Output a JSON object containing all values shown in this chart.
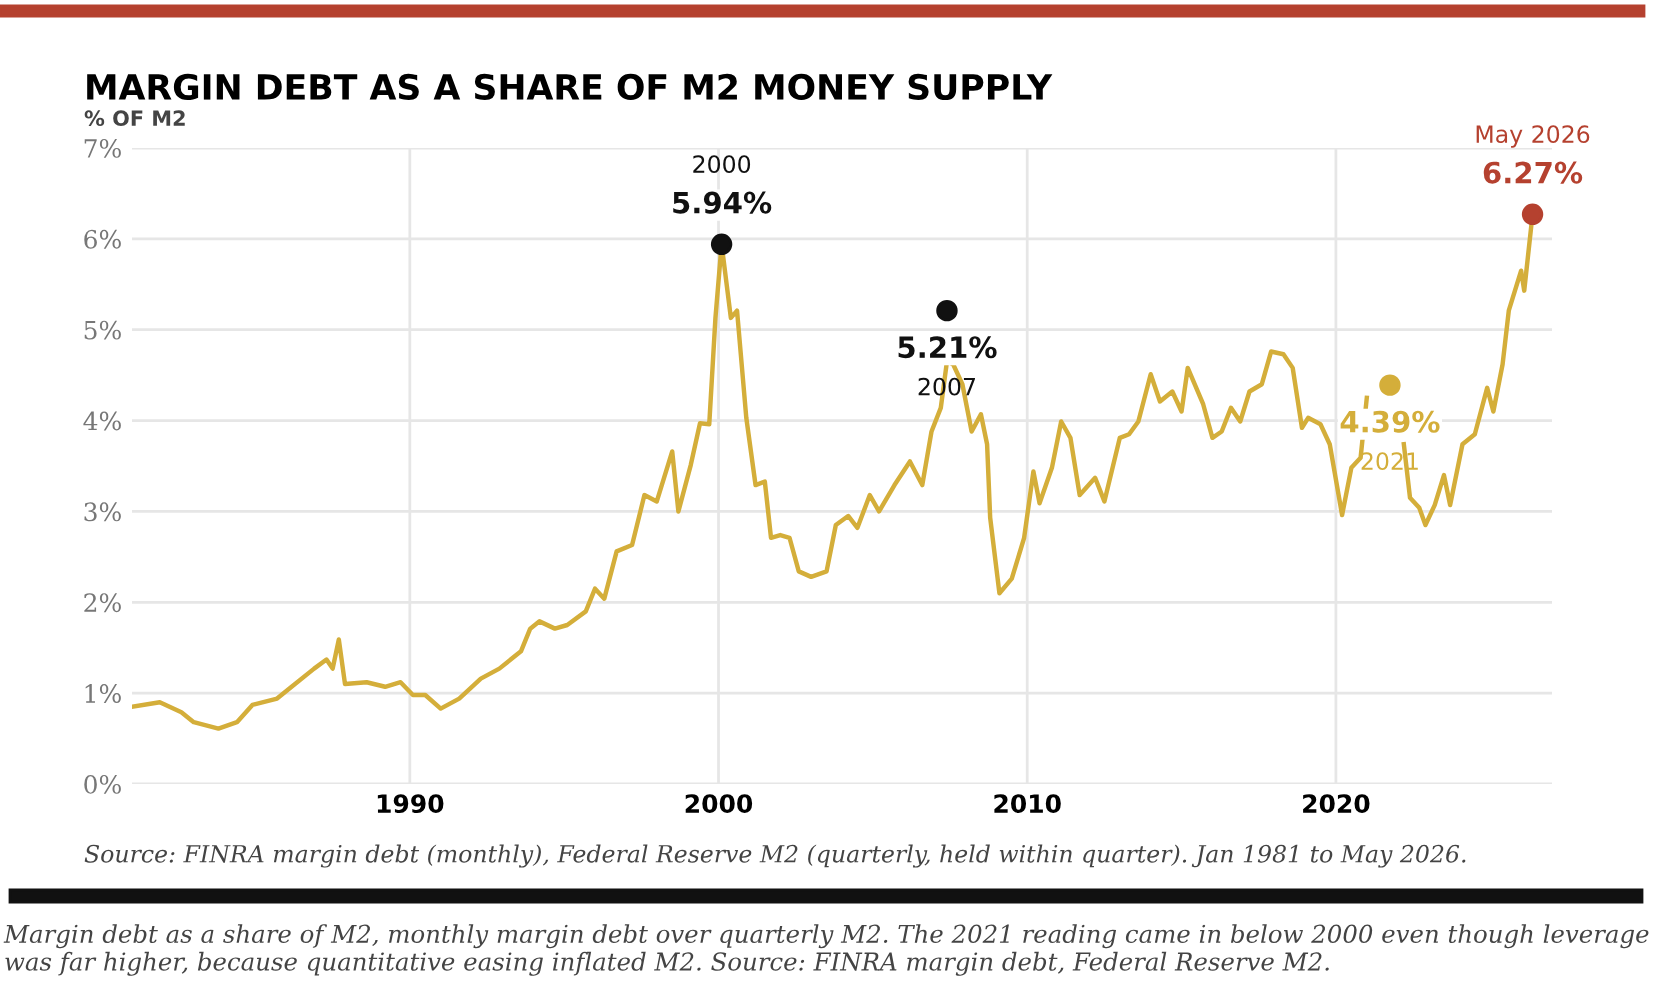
{
  "chart_data": {
    "type": "line",
    "title": "MARGIN DEBT AS A SHARE OF M2 MONEY SUPPLY",
    "ylabel": "% OF M2",
    "series": [
      {
        "color": "#d4ae3a",
        "x": [
          1981.0,
          1981.9,
          1982.6,
          1983.0,
          1983.8,
          1984.4,
          1984.9,
          1985.7,
          1986.1,
          1986.9,
          1987.3,
          1987.5,
          1987.7,
          1987.9,
          1988.6,
          1989.2,
          1989.7,
          1990.1,
          1990.5,
          1991.0,
          1991.6,
          1992.3,
          1992.9,
          1993.6,
          1993.9,
          1994.2,
          1994.7,
          1995.1,
          1995.7,
          1996.0,
          1996.3,
          1996.7,
          1997.2,
          1997.6,
          1998.0,
          1998.5,
          1998.7,
          1999.1,
          1999.4,
          1999.7,
          1999.9,
          2000.1,
          2000.4,
          2000.6,
          2000.9,
          2001.2,
          2001.5,
          2001.7,
          2002.0,
          2002.3,
          2002.6,
          2003.0,
          2003.5,
          2003.8,
          2004.2,
          2004.5,
          2004.9,
          2005.2,
          2005.7,
          2006.2,
          2006.6,
          2006.9,
          2007.2,
          2007.4,
          2007.6,
          2007.9,
          2008.2,
          2008.5,
          2008.7,
          2008.8,
          2009.1,
          2009.5,
          2009.9,
          2010.2,
          2010.4,
          2010.8,
          2011.1,
          2011.4,
          2011.7,
          2012.2,
          2012.5,
          2013.0,
          2013.3,
          2013.6,
          2014.0,
          2014.3,
          2014.7,
          2015.0,
          2015.2,
          2015.7,
          2016.0,
          2016.3,
          2016.6,
          2016.9,
          2017.2,
          2017.6,
          2017.9,
          2018.3,
          2018.6,
          2018.9,
          2019.1,
          2019.5,
          2019.8,
          2020.2,
          2020.5,
          2020.8,
          2021.0,
          2021.6,
          2022.2,
          2022.4,
          2022.7,
          2022.9,
          2023.2,
          2023.5,
          2023.7,
          2024.1,
          2024.5,
          2024.9,
          2025.1,
          2025.4,
          2025.6,
          2026.0,
          2026.1,
          2026.37
        ],
        "values": [
          0.85,
          0.9,
          0.79,
          0.68,
          0.61,
          0.68,
          0.87,
          0.94,
          1.05,
          1.27,
          1.37,
          1.27,
          1.59,
          1.1,
          1.12,
          1.07,
          1.12,
          0.98,
          0.98,
          0.83,
          0.94,
          1.16,
          1.27,
          1.46,
          1.71,
          1.79,
          1.71,
          1.75,
          1.9,
          2.15,
          2.04,
          2.56,
          2.63,
          3.18,
          3.11,
          3.66,
          3.0,
          3.51,
          3.97,
          3.96,
          5.13,
          5.94,
          5.13,
          5.21,
          4.03,
          3.29,
          3.33,
          2.71,
          2.74,
          2.71,
          2.34,
          2.28,
          2.34,
          2.85,
          2.95,
          2.82,
          3.18,
          3.0,
          3.29,
          3.55,
          3.29,
          3.88,
          4.14,
          4.65,
          4.62,
          4.4,
          3.88,
          4.07,
          3.74,
          2.93,
          2.1,
          2.26,
          2.71,
          3.44,
          3.09,
          3.48,
          3.99,
          3.81,
          3.18,
          3.37,
          3.11,
          3.81,
          3.85,
          3.99,
          4.51,
          4.21,
          4.32,
          4.1,
          4.58,
          4.18,
          3.81,
          3.88,
          4.14,
          3.99,
          4.32,
          4.4,
          4.76,
          4.73,
          4.58,
          3.92,
          4.03,
          3.96,
          3.74,
          2.96,
          3.48,
          3.59,
          4.25,
          null,
          3.74,
          3.15,
          3.04,
          2.85,
          3.07,
          3.4,
          3.07,
          3.74,
          3.85,
          4.36,
          4.1,
          4.62,
          5.21,
          5.65,
          5.43,
          6.27
        ]
      },
      {
        "type": "scatter",
        "marker": "circle",
        "x": [
          2000.1,
          2007.4,
          2021.75,
          2026.37
        ],
        "values": [
          5.94,
          5.21,
          4.39,
          6.27
        ],
        "colors": [
          "#111111",
          "#111111",
          "#d4ae3a",
          "#b5412f"
        ],
        "value_labels": [
          "5.94%",
          "5.21%",
          "4.39%",
          "6.27%"
        ]
      }
    ],
    "xlim": [
      1981,
      2027
    ],
    "xticks": [
      1990,
      2000,
      2010,
      2020
    ],
    "ylim": [
      0,
      7
    ],
    "yticks": [
      {
        "value": 0,
        "label": "0%"
      },
      {
        "value": 1,
        "label": "1%"
      },
      {
        "value": 2,
        "label": "2%"
      },
      {
        "value": 3,
        "label": "3%"
      },
      {
        "value": 4,
        "label": "4%"
      },
      {
        "value": 5,
        "label": "5%"
      },
      {
        "value": 6,
        "label": "6%"
      },
      {
        "value": 7,
        "label": "7%"
      }
    ],
    "grid": true,
    "line_style": "solid",
    "annotations": [
      "2000",
      "2007",
      "2021",
      "May 2026",
      "Source: FINRA margin debt (monthly), Federal Reserve M2 (quarterly, held within quarter). Jan 1981 to May 2026.",
      "Margin debt as a share of M2, monthly margin debt over quarterly M2. The 2021 reading came in below 2000 even though leverage was far higher, because quantitative easing inflated M2. Source: FINRA margin debt, Federal Reserve M2."
    ]
  }
}
